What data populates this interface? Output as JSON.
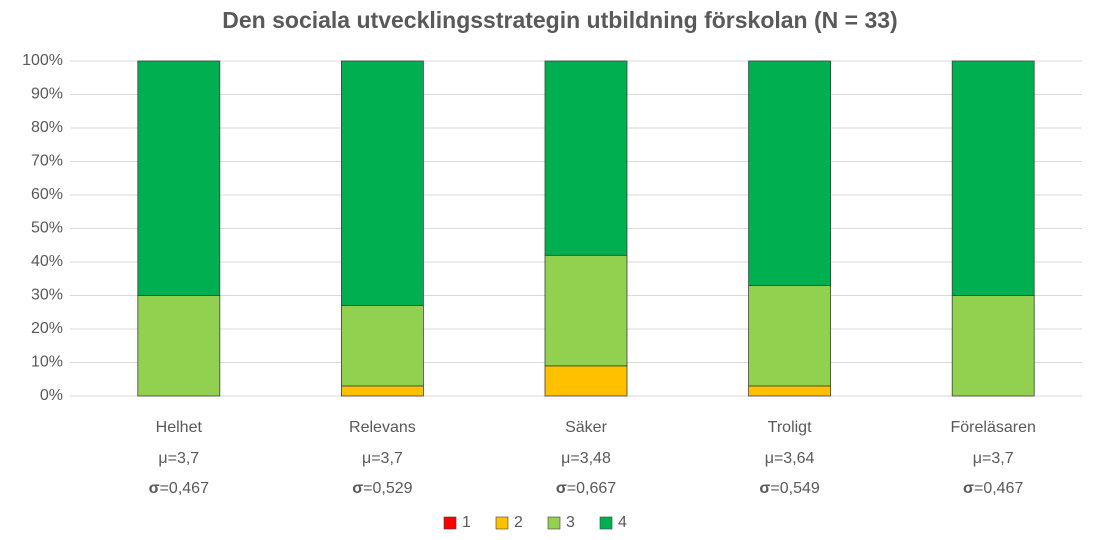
{
  "chart_data": {
    "type": "stacked_bar",
    "title": "Den sociala utvecklingsstrategin utbildning förskolan (N = 33)",
    "categories": [
      "Helhet",
      "Relevans",
      "Säker",
      "Troligt",
      "Föreläsaren"
    ],
    "category_stats": [
      {
        "mean": "μ=3,7",
        "sigma": "σ",
        "sd": "=0,467"
      },
      {
        "mean": "μ=3,7",
        "sigma": "σ",
        "sd": "=0,529"
      },
      {
        "mean": "μ=3,48",
        "sigma": "σ",
        "sd": "=0,667"
      },
      {
        "mean": "μ=3,64",
        "sigma": "σ",
        "sd": "=0,549"
      },
      {
        "mean": "μ=3,7",
        "sigma": "σ",
        "sd": "=0,467"
      }
    ],
    "series": [
      {
        "name": "1",
        "color": "#ff0000",
        "values": [
          0,
          0,
          0,
          0,
          0
        ]
      },
      {
        "name": "2",
        "color": "#ffc000",
        "values": [
          0,
          3,
          9,
          3,
          0
        ]
      },
      {
        "name": "3",
        "color": "#92d050",
        "values": [
          30,
          24,
          33,
          30,
          30
        ]
      },
      {
        "name": "4",
        "color": "#00b050",
        "values": [
          70,
          73,
          58,
          67,
          70
        ]
      }
    ],
    "ylim": [
      0,
      100
    ],
    "yticks": [
      {
        "value": 0,
        "label": "0%"
      },
      {
        "value": 10,
        "label": "10%"
      },
      {
        "value": 20,
        "label": "20%"
      },
      {
        "value": 30,
        "label": "30%"
      },
      {
        "value": 40,
        "label": "40%"
      },
      {
        "value": 50,
        "label": "50%"
      },
      {
        "value": 60,
        "label": "60%"
      },
      {
        "value": 70,
        "label": "70%"
      },
      {
        "value": 80,
        "label": "80%"
      },
      {
        "value": 90,
        "label": "90%"
      },
      {
        "value": 100,
        "label": "100%"
      }
    ],
    "grid": true,
    "legend": "bottom"
  }
}
